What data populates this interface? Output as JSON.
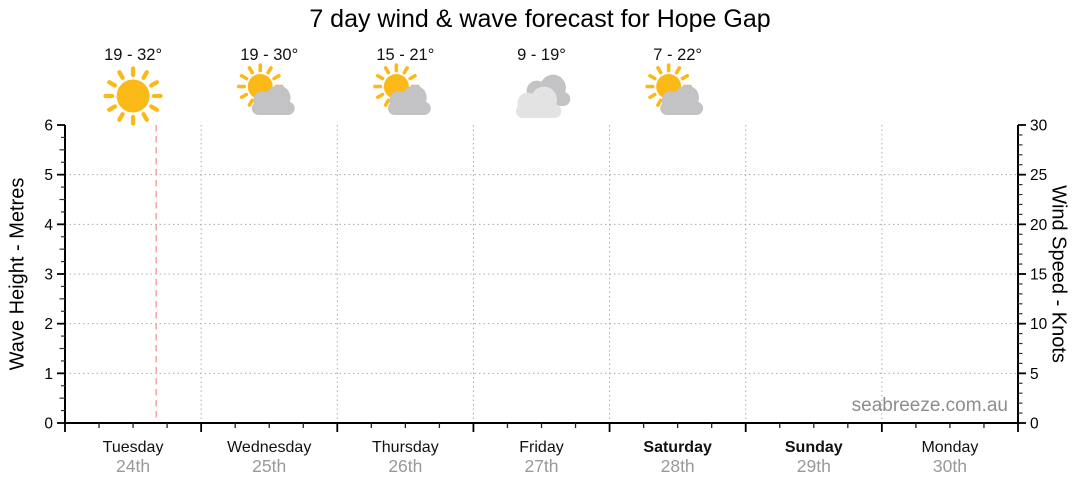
{
  "title": "7 day wind & wave forecast for Hope Gap",
  "watermark": "seabreeze.com.au",
  "chart_data": {
    "type": "line",
    "title": "7 day wind & wave forecast for Hope Gap",
    "note": "forecast grid shown with day headers; no wind/wave series plotted yet",
    "days": [
      {
        "name": "Tuesday",
        "date": "24th",
        "temp": "19 - 32°",
        "icon": "sunny",
        "bold": false
      },
      {
        "name": "Wednesday",
        "date": "25th",
        "temp": "19 - 30°",
        "icon": "sun-cloud",
        "bold": false
      },
      {
        "name": "Thursday",
        "date": "26th",
        "temp": "15 - 21°",
        "icon": "sun-cloud",
        "bold": false
      },
      {
        "name": "Friday",
        "date": "27th",
        "temp": "9 - 19°",
        "icon": "cloudy",
        "bold": false
      },
      {
        "name": "Saturday",
        "date": "28th",
        "temp": "7 - 22°",
        "icon": "sun-cloud",
        "bold": true
      },
      {
        "name": "Sunday",
        "date": "29th",
        "temp": "",
        "icon": null,
        "bold": true
      },
      {
        "name": "Monday",
        "date": "30th",
        "temp": "",
        "icon": null,
        "bold": false
      }
    ],
    "y_left": {
      "label": "Wave Height - Metres",
      "min": 0,
      "max": 6,
      "major_step": 1,
      "minor_step": 0.25
    },
    "y_right": {
      "label": "Wind Speed - Knots",
      "min": 0,
      "max": 30,
      "major_step": 5,
      "minor_step": 1
    },
    "series": [],
    "now_marker": {
      "day_index": 0,
      "fraction_of_day": 0.67
    },
    "grid": {
      "horizontal_at": [
        1,
        2,
        3,
        4,
        5
      ],
      "vertical_at_day_boundaries": true
    }
  },
  "colors": {
    "sun": "#FBB917",
    "cloud": "#C3C3C5",
    "cloud_light": "#E3E3E4",
    "now_line": "#F4A8A4",
    "grid": "#ABABAB",
    "axis": "#000000",
    "day_text": "#111111",
    "date_text": "#999999",
    "temp_text": "#111111",
    "watermark": "#8D8D8D",
    "title": "#000000"
  }
}
